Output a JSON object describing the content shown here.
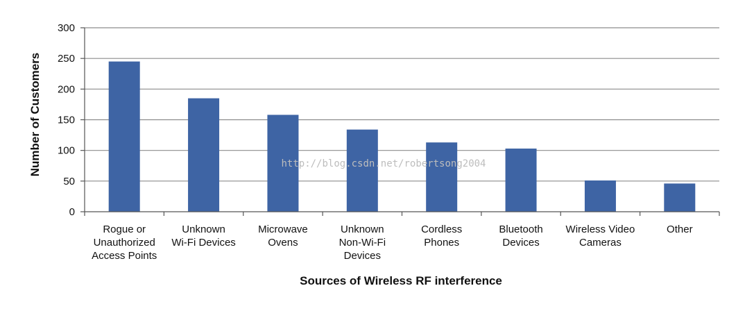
{
  "chart_data": {
    "type": "bar",
    "categories": [
      [
        "Rogue or",
        "Unauthorized",
        "Access Points"
      ],
      [
        "Unknown",
        "Wi-Fi Devices"
      ],
      [
        "Microwave",
        "Ovens"
      ],
      [
        "Unknown",
        "Non-Wi-Fi",
        "Devices"
      ],
      [
        "Cordless",
        "Phones"
      ],
      [
        "Bluetooth",
        "Devices"
      ],
      [
        "Wireless Video",
        "Cameras"
      ],
      [
        "Other"
      ]
    ],
    "values": [
      245,
      185,
      158,
      134,
      113,
      103,
      51,
      46
    ],
    "xlabel": "Sources of Wireless RF interference",
    "ylabel": "Number of Customers",
    "ylim": [
      0,
      300
    ],
    "yticks": [
      0,
      50,
      100,
      150,
      200,
      250,
      300
    ],
    "grid": true,
    "bar_color": "#3E64A4",
    "grid_color": "#8C8C8C"
  },
  "watermark": "http://blog.csdn.net/robertsong2004"
}
